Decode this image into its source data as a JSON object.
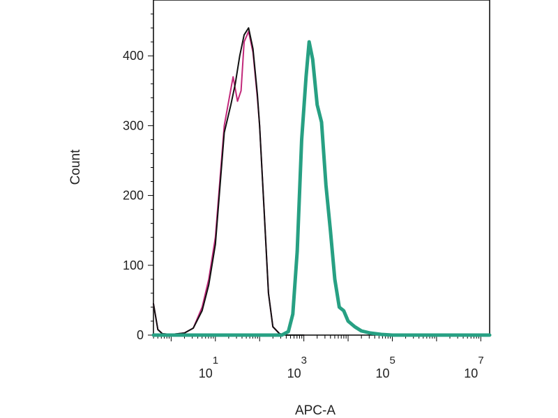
{
  "chart_data": {
    "type": "line",
    "title": "",
    "xlabel": "APC-A",
    "ylabel": "Count",
    "x_scale": "log",
    "xlim_log10": [
      -0.4,
      7.2
    ],
    "ylim": [
      0,
      480
    ],
    "grid": false,
    "y_ticks": [
      {
        "value": 0,
        "label": "0"
      },
      {
        "value": 100,
        "label": "100"
      },
      {
        "value": 200,
        "label": "200"
      },
      {
        "value": 300,
        "label": "300"
      },
      {
        "value": 400,
        "label": "400"
      }
    ],
    "x_ticks": [
      {
        "exponent": 1,
        "base": "10",
        "sup": "1"
      },
      {
        "exponent": 3,
        "base": "10",
        "sup": "3"
      },
      {
        "exponent": 5,
        "base": "10",
        "sup": "5"
      },
      {
        "exponent": 7,
        "base": "10",
        "sup": "7"
      }
    ],
    "series": [
      {
        "color": "#c2287a",
        "stroke": 2,
        "x_log10": [
          -0.4,
          -0.3,
          -0.2,
          0.0,
          0.3,
          0.5,
          0.7,
          0.85,
          1.0,
          1.2,
          1.4,
          1.5,
          1.58,
          1.65,
          1.75,
          1.85,
          1.95,
          2.0,
          2.1,
          2.2,
          2.3,
          2.45,
          2.6,
          3.0
        ],
        "y": [
          45,
          8,
          2,
          1,
          3,
          10,
          40,
          80,
          140,
          300,
          370,
          335,
          350,
          420,
          435,
          405,
          340,
          300,
          180,
          60,
          12,
          2,
          0,
          0
        ]
      },
      {
        "color": "#111111",
        "stroke": 2,
        "x_log10": [
          -0.4,
          -0.3,
          -0.2,
          0.0,
          0.3,
          0.5,
          0.7,
          0.85,
          1.0,
          1.2,
          1.35,
          1.45,
          1.55,
          1.65,
          1.75,
          1.85,
          1.95,
          2.0,
          2.1,
          2.2,
          2.3,
          2.45,
          2.6,
          3.0
        ],
        "y": [
          45,
          8,
          2,
          1,
          3,
          10,
          35,
          72,
          130,
          290,
          330,
          360,
          400,
          430,
          440,
          410,
          345,
          300,
          180,
          60,
          12,
          2,
          0,
          0
        ]
      },
      {
        "color": "#27a083",
        "stroke": 5,
        "x_log10": [
          -0.4,
          2.5,
          2.65,
          2.75,
          2.85,
          2.95,
          3.05,
          3.12,
          3.2,
          3.3,
          3.4,
          3.5,
          3.6,
          3.7,
          3.8,
          3.9,
          4.0,
          4.15,
          4.3,
          4.5,
          4.75,
          5.0,
          7.2
        ],
        "y": [
          0,
          0,
          5,
          30,
          120,
          280,
          370,
          420,
          395,
          330,
          305,
          215,
          150,
          80,
          40,
          35,
          20,
          12,
          6,
          3,
          1,
          0,
          0
        ]
      }
    ]
  }
}
